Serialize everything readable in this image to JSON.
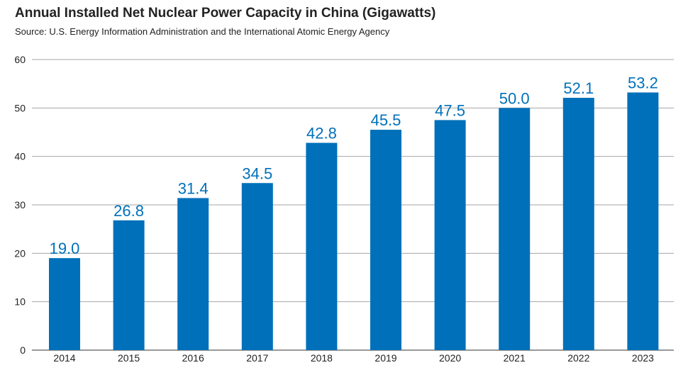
{
  "header": {
    "title": "Annual Installed Net Nuclear Power Capacity in China (Gigawatts)",
    "subtitle": "Source: U.S. Energy Information Administration and the International Atomic Energy Agency"
  },
  "colors": {
    "bar": "#0070BA",
    "label": "#0070BA",
    "grid": "#A6A6A6"
  },
  "chart_data": {
    "type": "bar",
    "title": "Annual Installed Net Nuclear Power Capacity in China (Gigawatts)",
    "categories": [
      "2014",
      "2015",
      "2016",
      "2017",
      "2018",
      "2019",
      "2020",
      "2021",
      "2022",
      "2023"
    ],
    "values": [
      19.0,
      26.8,
      31.4,
      34.5,
      42.8,
      45.5,
      47.5,
      50.0,
      52.1,
      53.2
    ],
    "data_labels": [
      "19.0",
      "26.8",
      "31.4",
      "34.5",
      "42.8",
      "45.5",
      "47.5",
      "50.0",
      "52.1",
      "53.2"
    ],
    "yticks": [
      0,
      10,
      20,
      30,
      40,
      50,
      60
    ],
    "ylim": [
      0,
      60
    ],
    "grid": true,
    "legend": "none"
  }
}
